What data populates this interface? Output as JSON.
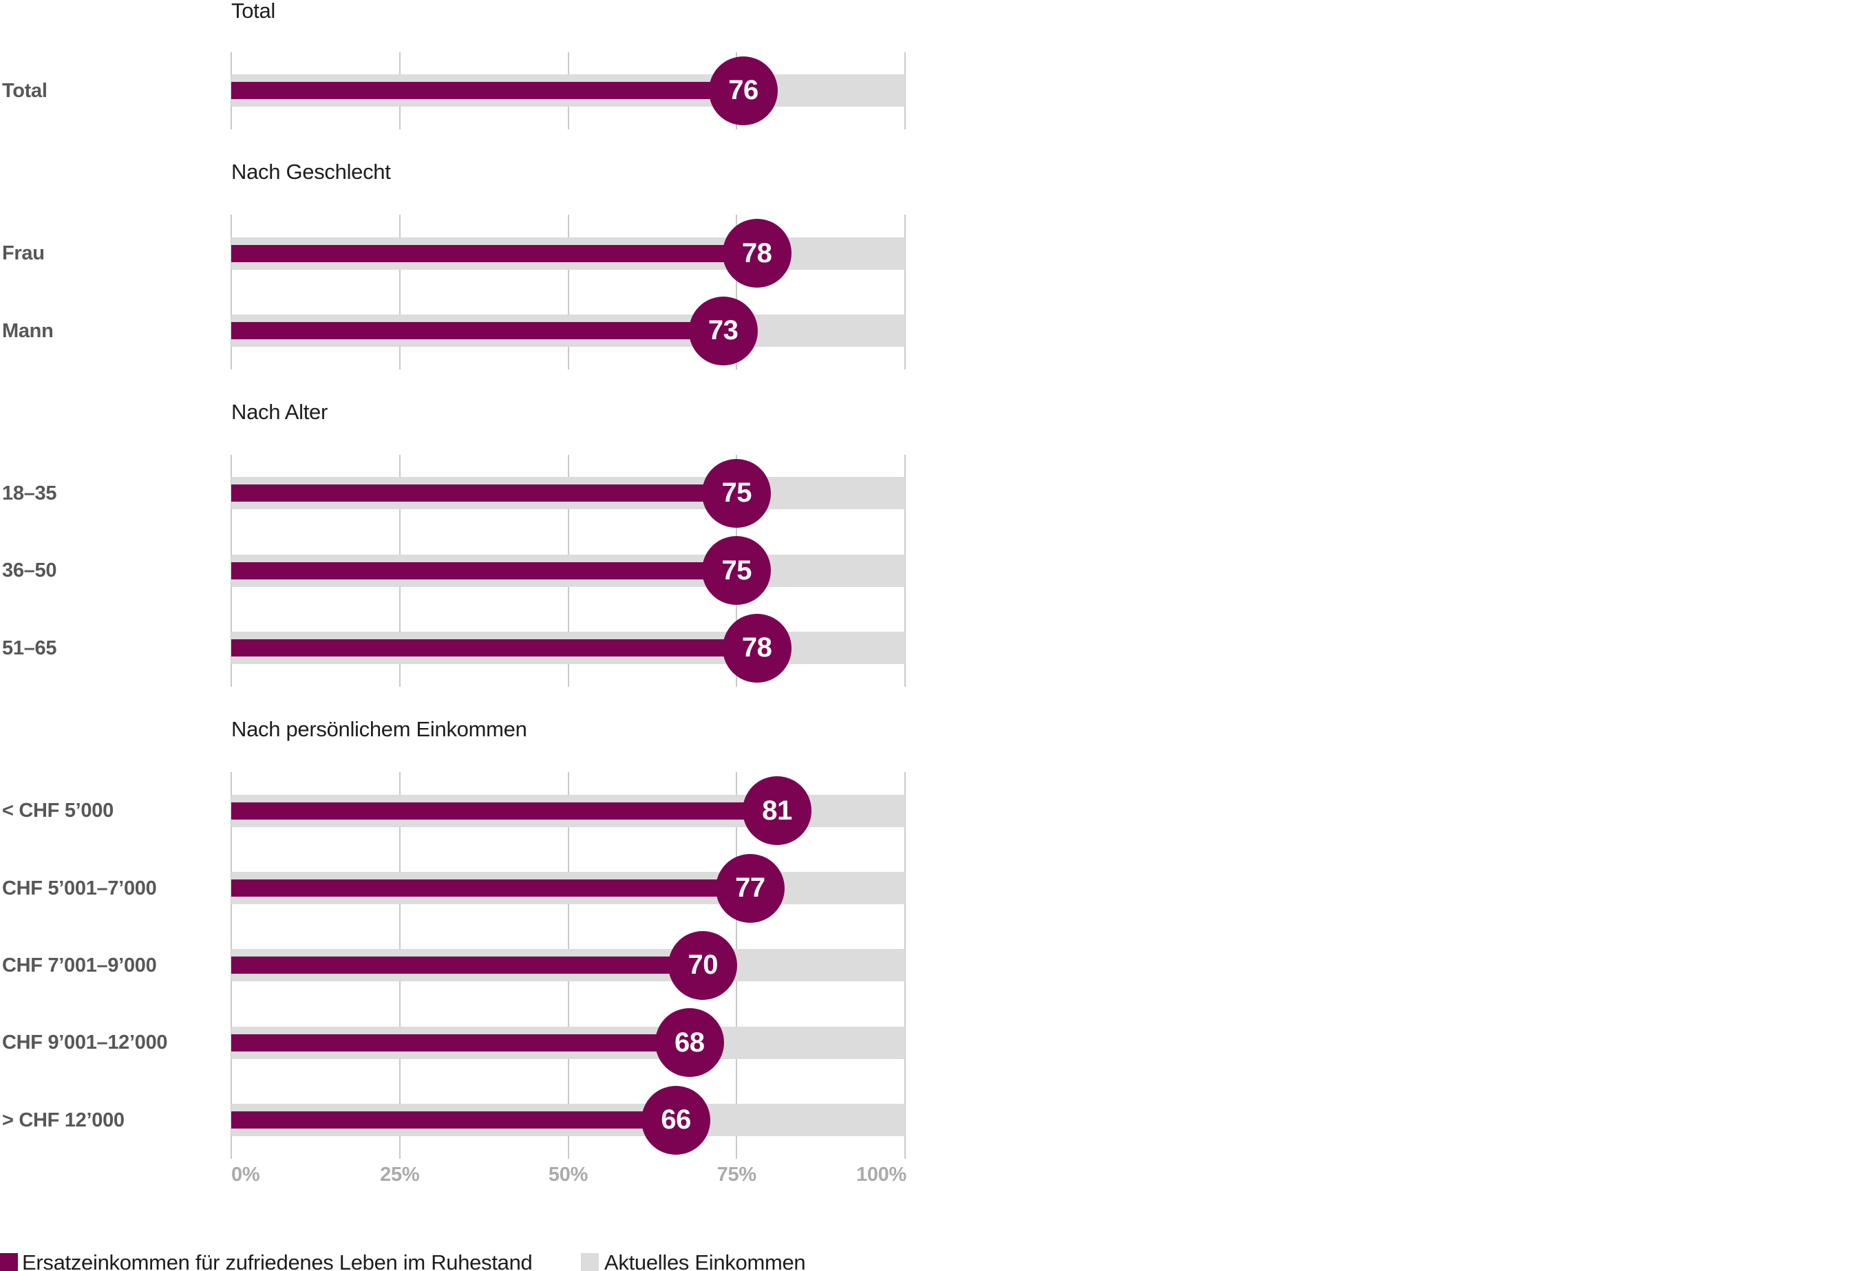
{
  "colors": {
    "accent": "#7c0352",
    "track": "#dcdcdc",
    "gridline": "#c9c9c9",
    "section_title_text": "#1d1d1b",
    "row_label_text": "#575756",
    "axis_text": "#ababab",
    "bubble_text": "#ffffff"
  },
  "chart_data": {
    "type": "bar",
    "orientation": "horizontal",
    "unit": "%",
    "xlim": [
      0,
      100
    ],
    "grid": true,
    "x_ticks": [
      {
        "value": 0,
        "label": "0%"
      },
      {
        "value": 25,
        "label": "25%"
      },
      {
        "value": 50,
        "label": "50%"
      },
      {
        "value": 75,
        "label": "75%"
      },
      {
        "value": 100,
        "label": "100%"
      }
    ],
    "series_note": "Magenta bar with value bubble = Ersatzeinkommen; full-width gray track (100%) = Aktuelles Einkommen",
    "groups": [
      {
        "title": "Total",
        "rows": [
          {
            "label": "Total",
            "value": 76,
            "track_value": 100
          }
        ]
      },
      {
        "title": "Nach Geschlecht",
        "rows": [
          {
            "label": "Frau",
            "value": 78,
            "track_value": 100
          },
          {
            "label": "Mann",
            "value": 73,
            "track_value": 100
          }
        ]
      },
      {
        "title": "Nach Alter",
        "rows": [
          {
            "label": "18–35",
            "value": 75,
            "track_value": 100
          },
          {
            "label": "36–50",
            "value": 75,
            "track_value": 100
          },
          {
            "label": "51–65",
            "value": 78,
            "track_value": 100
          }
        ]
      },
      {
        "title": "Nach persönlichem Einkommen",
        "rows": [
          {
            "label": "< CHF 5’000",
            "value": 81,
            "track_value": 100
          },
          {
            "label": "CHF 5’001–7’000",
            "value": 77,
            "track_value": 100
          },
          {
            "label": "CHF 7’001–9’000",
            "value": 70,
            "track_value": 100
          },
          {
            "label": "CHF 9’001–12’000",
            "value": 68,
            "track_value": 100
          },
          {
            "label": "> CHF 12’000",
            "value": 66,
            "track_value": 100
          }
        ]
      }
    ],
    "legend": [
      {
        "label": "Ersatzeinkommen für zufriedenes Leben im Ruhestand",
        "color": "#7c0352"
      },
      {
        "label": "Aktuelles Einkommen",
        "color": "#dcdcdc"
      }
    ],
    "legend_position": "bottom-left"
  }
}
